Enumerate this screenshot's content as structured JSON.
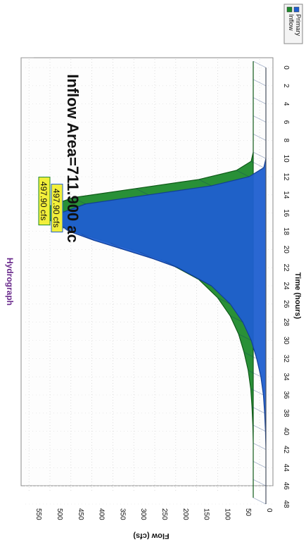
{
  "chart_data": {
    "type": "area",
    "title": "Hydrograph",
    "xlabel": "Time (hours)",
    "ylabel": "Flow (cfs)",
    "annotation": "Inflow Area=711.900 ac",
    "xlim": [
      0,
      48
    ],
    "ylim": [
      0,
      550
    ],
    "x_ticks": [
      "0",
      "2",
      "4",
      "6",
      "8",
      "10",
      "12",
      "14",
      "16",
      "18",
      "20",
      "22",
      "24",
      "26",
      "28",
      "30",
      "32",
      "34",
      "36",
      "38",
      "40",
      "42",
      "44",
      "46",
      "48"
    ],
    "y_ticks": [
      "0",
      "50",
      "100",
      "150",
      "200",
      "250",
      "300",
      "350",
      "400",
      "450",
      "500",
      "550"
    ],
    "grid": true,
    "legend_position": "top-right",
    "colors": {
      "inflow": "#1e8a2c",
      "primary": "#1f5fd0",
      "title": "#6a2a8c",
      "label_box": "#f2ef3a"
    },
    "x": [
      0,
      2,
      4,
      6,
      8,
      10,
      11,
      12,
      13,
      14,
      15,
      16,
      17,
      18,
      19,
      20,
      21,
      22,
      24,
      26,
      28,
      30,
      32,
      34,
      36,
      38,
      40,
      42,
      44,
      46,
      48
    ],
    "series": [
      {
        "name": "Inflow",
        "peak_label": "497.90 cfs",
        "values": [
          0,
          0,
          0,
          0,
          0,
          0,
          5,
          40,
          130,
          280,
          430,
          490,
          497.9,
          470,
          410,
          340,
          270,
          210,
          130,
          85,
          55,
          35,
          22,
          12,
          6,
          3,
          1,
          0,
          0,
          0,
          0
        ]
      },
      {
        "name": "Primary",
        "peak_label": "497.90 cfs",
        "values": [
          0,
          0,
          0,
          0,
          0,
          0,
          5,
          40,
          130,
          280,
          430,
          490,
          497.9,
          470,
          410,
          340,
          270,
          210,
          130,
          85,
          55,
          35,
          22,
          12,
          6,
          3,
          1,
          0,
          0,
          0,
          0
        ]
      }
    ]
  }
}
